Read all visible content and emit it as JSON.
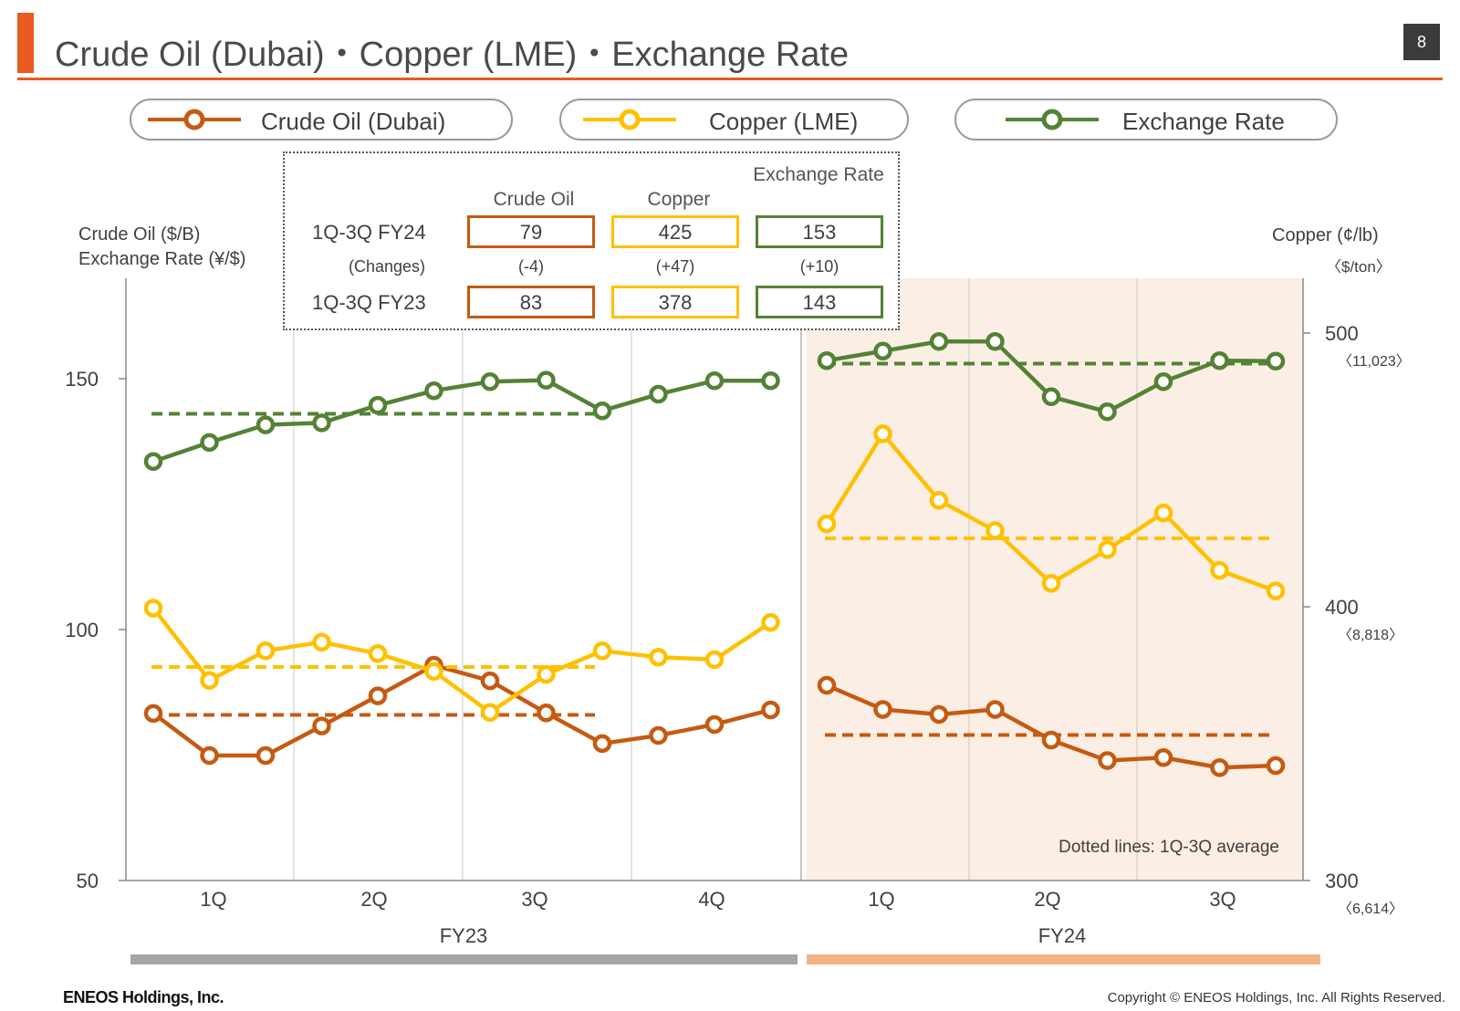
{
  "header": {
    "title": "Crude Oil (Dubai)・Copper (LME)・Exchange Rate",
    "page_number": "8"
  },
  "legend": {
    "crude": "Crude Oil (Dubai)",
    "copper": "Copper (LME)",
    "fx": "Exchange Rate"
  },
  "summary": {
    "headers": {
      "crude": "Crude Oil",
      "copper": "Copper",
      "fx": "Exchange Rate"
    },
    "row_fy24": {
      "label": "1Q-3Q FY24",
      "crude": "79",
      "copper": "425",
      "fx": "153"
    },
    "row_changes": {
      "label": "(Changes)",
      "crude": "(-4)",
      "copper": "(+47)",
      "fx": "(+10)"
    },
    "row_fy23": {
      "label": "1Q-3Q FY23",
      "crude": "83",
      "copper": "378",
      "fx": "143"
    }
  },
  "axes": {
    "left_title_1": "Crude Oil ($/B)",
    "left_title_2": "Exchange Rate (¥/$)",
    "right_title_1": "Copper (¢/lb)",
    "right_title_2": "〈$/ton〉"
  },
  "chart_data": {
    "type": "line",
    "left_axis": {
      "ylim": [
        50,
        170
      ],
      "ticks": [
        "50",
        "100",
        "150"
      ],
      "tick_values": [
        50,
        100,
        150
      ]
    },
    "right_axis": {
      "ylim": [
        300,
        505
      ],
      "ticks": [
        {
          "value": 300,
          "label": "300",
          "sub": "〈6,614〉"
        },
        {
          "value": 400,
          "label": "400",
          "sub": "〈8,818〉"
        },
        {
          "value": 500,
          "label": "500",
          "sub": "〈11,023〉"
        }
      ]
    },
    "quarter_labels": {
      "FY23": [
        "1Q",
        "2Q",
        "3Q",
        "4Q"
      ],
      "FY24": [
        "1Q",
        "2Q",
        "3Q"
      ]
    },
    "period_labels": [
      "FY23",
      "FY24"
    ],
    "annotation": "Dotted lines: 1Q-3Q average",
    "series": [
      {
        "name": "Crude Oil (Dubai)",
        "axis": "left",
        "color": "#C55A11",
        "fy23": [
          83.3,
          74.9,
          74.9,
          80.8,
          86.8,
          92.9,
          89.8,
          83.4,
          77.3,
          78.9,
          81.1,
          84.0
        ],
        "fy24": [
          88.9,
          84.1,
          83.1,
          84.1,
          78.0,
          73.9,
          74.5,
          72.5,
          72.9
        ],
        "avg_fy23": 83,
        "avg_fy24": 79
      },
      {
        "name": "Copper (LME)",
        "axis": "right",
        "color": "#FFC000",
        "fy23": [
          399.5,
          373.1,
          383.9,
          387.1,
          382.9,
          376.4,
          361.4,
          375.3,
          383.9,
          381.6,
          380.7,
          394.3
        ],
        "fy24": [
          430.3,
          463.2,
          438.9,
          427.8,
          408.6,
          420.9,
          434.3,
          413.3,
          405.8
        ],
        "avg_fy23": 378,
        "avg_fy24": 425
      },
      {
        "name": "Exchange Rate",
        "axis": "left",
        "color": "#548235",
        "fy23": [
          133.5,
          137.3,
          140.8,
          141.2,
          144.7,
          147.6,
          149.4,
          149.7,
          143.6,
          146.9,
          149.6,
          149.6
        ],
        "fy24": [
          153.6,
          155.5,
          157.4,
          157.4,
          146.4,
          143.4,
          149.4,
          153.6,
          153.5
        ],
        "avg_fy23": 143,
        "avg_fy24": 153
      }
    ]
  },
  "footer": {
    "company": "ENEOS Holdings, Inc.",
    "copyright": "Copyright © ENEOS Holdings, Inc. All Rights Reserved."
  }
}
